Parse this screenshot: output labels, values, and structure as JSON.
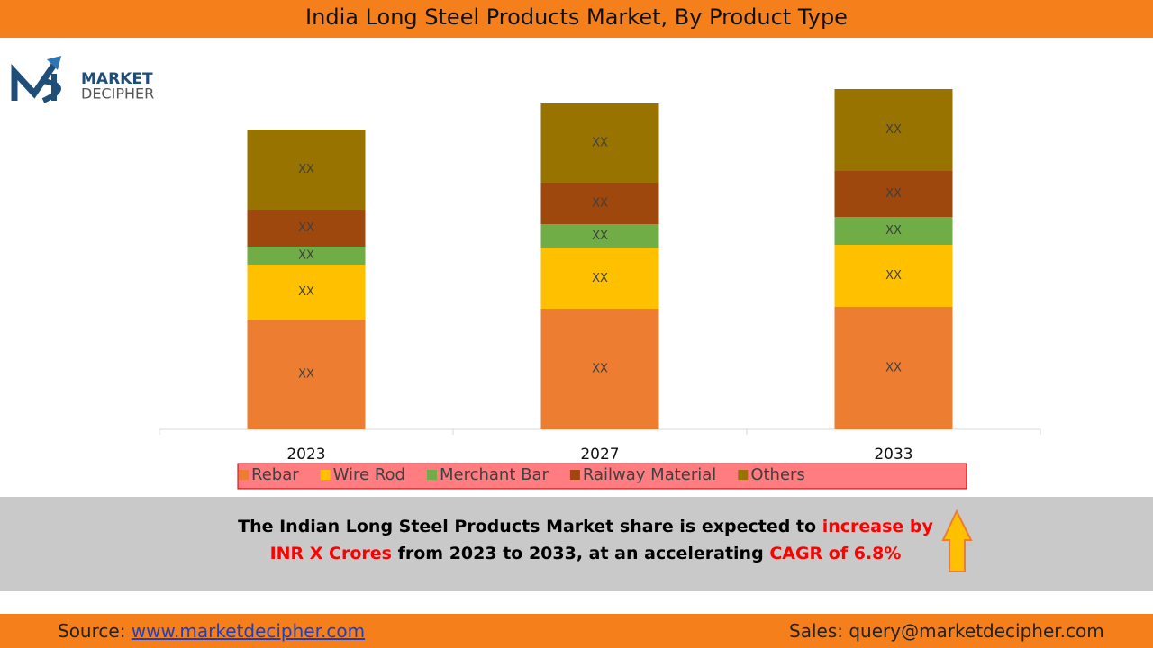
{
  "chart_data": {
    "type": "stacked-bar",
    "title": "India Long Steel Products Market, By Product Type",
    "categories": [
      "2023",
      "2027",
      "2033"
    ],
    "series": [
      {
        "name": "Rebar",
        "color": "#ED7D31",
        "values": [
          122,
          134,
          136
        ],
        "value_labels": [
          "XX",
          "XX",
          "XX"
        ]
      },
      {
        "name": "Wire Rod",
        "color": "#FFC000",
        "values": [
          61,
          67,
          69
        ],
        "value_labels": [
          "XX",
          "XX",
          "XX"
        ]
      },
      {
        "name": "Merchant Bar",
        "color": "#70AD47",
        "values": [
          20,
          27,
          31
        ],
        "value_labels": [
          "XX",
          "XX",
          "XX"
        ]
      },
      {
        "name": "Railway Material",
        "color": "#9E480E",
        "values": [
          41,
          46,
          51
        ],
        "value_labels": [
          "XX",
          "XX",
          "XX"
        ]
      },
      {
        "name": "Others",
        "color": "#997300",
        "values": [
          89,
          88,
          91
        ],
        "value_labels": [
          "XX",
          "XX",
          "XX"
        ]
      }
    ],
    "ylim": [
      0,
      400
    ],
    "legend": "bottom"
  },
  "logo": {
    "line1": "MARKET",
    "line2": "DECIPHER"
  },
  "callout": {
    "part1": "The Indian Long Steel Products Market share is expected to ",
    "part2": "increase by INR X Crores",
    "part3": " from 2023 to 2033, at an accelerating ",
    "part4": "CAGR of 6.8%"
  },
  "footer": {
    "source_label": "Source: ",
    "source_link": "www.marketdecipher.com",
    "sales": "Sales: query@marketdecipher.com"
  }
}
